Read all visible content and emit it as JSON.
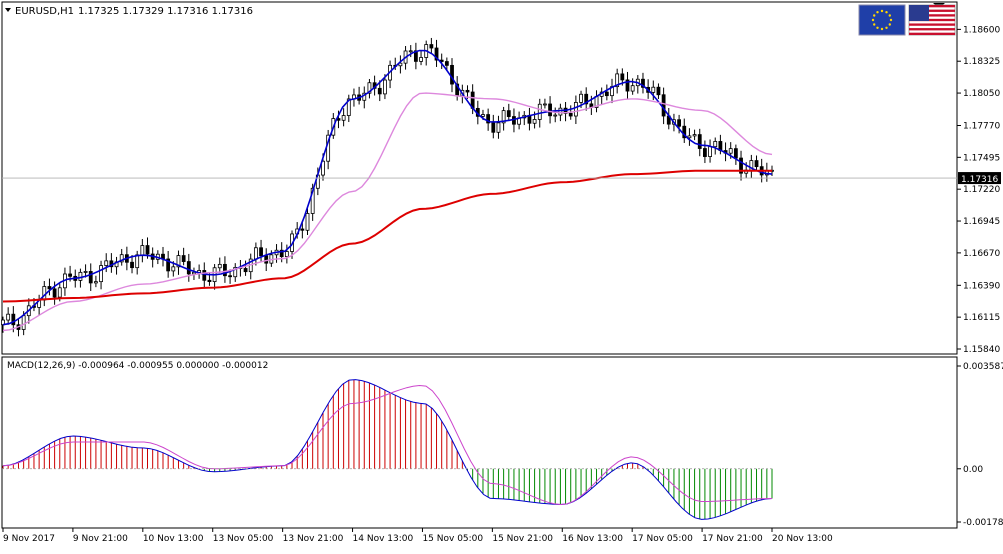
{
  "header": {
    "symbol": "EURUSD,H1",
    "ohlc": "1.17325 1.17329 1.17316 1.17316"
  },
  "flags": [
    "eu-flag-icon",
    "us-flag-icon"
  ],
  "price_panel": {
    "y_ticks": [
      "1.18600",
      "1.18325",
      "1.18050",
      "1.17770",
      "1.17495",
      "1.17220",
      "1.16945",
      "1.16670",
      "1.16390",
      "1.16115",
      "1.15840"
    ],
    "current_price_label": "1.17316"
  },
  "macd_panel": {
    "label": "MACD(12,26,9) -0.000964 -0.000955 0.000000 -0.000012",
    "y_ticks": [
      "0.003587",
      "0.00",
      "-0.001788"
    ]
  },
  "x_ticks": [
    "9 Nov 2017",
    "9 Nov 21:00",
    "10 Nov 13:00",
    "13 Nov 05:00",
    "13 Nov 21:00",
    "14 Nov 13:00",
    "15 Nov 05:00",
    "15 Nov 21:00",
    "16 Nov 13:00",
    "17 Nov 05:00",
    "17 Nov 21:00",
    "20 Nov 13:00"
  ],
  "colors": {
    "fast_ma": "#0000cc",
    "slow_ma": "#dd88dd",
    "long_ma": "#dd0000",
    "candles": "#000000",
    "hist_up": "#cc0000",
    "hist_down": "#008800",
    "macd_line": "#0000cc",
    "signal_line": "#cc44cc"
  },
  "chart_data": [
    {
      "type": "line",
      "title": "EURUSD,H1",
      "x": [
        "9 Nov 2017",
        "9 Nov 21:00",
        "10 Nov 13:00",
        "13 Nov 05:00",
        "13 Nov 21:00",
        "14 Nov 13:00",
        "15 Nov 05:00",
        "15 Nov 21:00",
        "16 Nov 13:00",
        "17 Nov 05:00",
        "17 Nov 21:00",
        "20 Nov 13:00"
      ],
      "ylim": [
        1.1584,
        1.1875
      ],
      "series": [
        {
          "values": [
            1.1605,
            1.1645,
            1.1665,
            1.1648,
            1.1668,
            1.18,
            1.1842,
            1.178,
            1.179,
            1.1815,
            1.176,
            1.1735
          ]
        },
        {
          "values": [
            1.16,
            1.1625,
            1.164,
            1.165,
            1.1662,
            1.172,
            1.1805,
            1.18,
            1.1788,
            1.18,
            1.179,
            1.1752
          ]
        },
        {
          "values": [
            1.1625,
            1.1628,
            1.1632,
            1.1637,
            1.1645,
            1.1675,
            1.1705,
            1.1718,
            1.1728,
            1.1735,
            1.1738,
            1.1738
          ]
        }
      ]
    },
    {
      "type": "bar",
      "title": "MACD(12,26,9) -0.000964 -0.000955 0.000000 -0.000012",
      "x": [
        "9 Nov 2017",
        "9 Nov 21:00",
        "10 Nov 13:00",
        "13 Nov 05:00",
        "13 Nov 21:00",
        "14 Nov 13:00",
        "15 Nov 05:00",
        "15 Nov 21:00",
        "16 Nov 13:00",
        "17 Nov 05:00",
        "17 Nov 21:00",
        "20 Nov 13:00"
      ],
      "ylim": [
        -0.001788,
        0.003587
      ],
      "series": [
        {
          "values": [
            0.0001,
            0.0011,
            0.0007,
            -0.0001,
            0.0001,
            0.003,
            0.0022,
            -0.001,
            -0.0012,
            0.0002,
            -0.0017,
            -0.001
          ]
        },
        {
          "values": [
            0.0001,
            0.0009,
            0.0009,
            0.0,
            0.0001,
            0.0022,
            0.0028,
            -0.0005,
            -0.0012,
            0.0004,
            -0.0011,
            -0.001
          ]
        }
      ]
    }
  ]
}
